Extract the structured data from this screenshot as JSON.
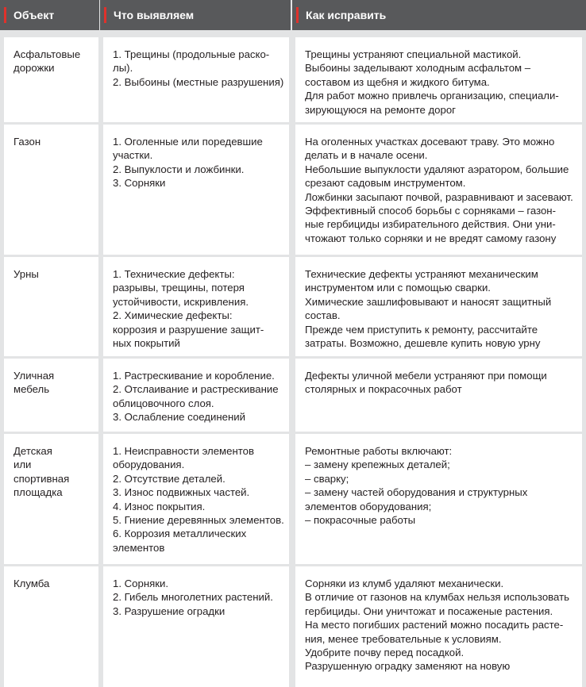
{
  "table": {
    "header": [
      "Объект",
      "Что выявляем",
      "Как исправить"
    ],
    "rows": [
      [
        [
          "Асфальтовые",
          "дорожки"
        ],
        [
          "1. Трещины (продольные раско-",
          "лы).",
          "2. Выбоины (местные разрушения)"
        ],
        [
          "Трещины устраняют специальной мастикой.",
          "Выбоины заделывают холодным асфальтом –",
          "составом из щебня и жидкого битума.",
          "Для работ можно привлечь организацию, специали-",
          "зирующуюся на ремонте дорог"
        ]
      ],
      [
        [
          "Газон"
        ],
        [
          "1. Оголенные или поредевшие",
          "участки.",
          "2. Выпуклости и ложбинки.",
          "3. Сорняки"
        ],
        [
          "На оголенных участках досевают траву. Это можно",
          "делать и в начале осени.",
          "Небольшие выпуклости удаляют аэратором, большие",
          "срезают садовым инструментом.",
          "Ложбинки засыпают почвой, разравнивают и засевают.",
          "Эффективный способ борьбы с сорняками – газон-",
          "ные гербициды избирательного действия. Они уни-",
          "чтожают только сорняки и не вредят самому газону"
        ]
      ],
      [
        [
          "Урны"
        ],
        [
          "1. Технические дефекты:",
          "разрывы, трещины, потеря",
          "устойчивости, искривления.",
          "2. Химические дефекты:",
          "коррозия и разрушение защит-",
          "ных покрытий"
        ],
        [
          "Технические дефекты устраняют механическим",
          "инструментом или с помощью сварки.",
          "Химические зашлифовывают и наносят защитный",
          "состав.",
          "Прежде чем приступить к ремонту, рассчитайте",
          "затраты. Возможно, дешевле купить новую урну"
        ]
      ],
      [
        [
          "Уличная",
          "мебель"
        ],
        [
          "1. Растрескивание и коробление.",
          "2. Отслаивание и растрескивание",
          "облицовочного слоя.",
          "3. Ослабление соединений"
        ],
        [
          "Дефекты уличной мебели устраняют при помощи",
          "столярных и покрасочных работ"
        ]
      ],
      [
        [
          "Детская",
          "или",
          "спортивная",
          "площадка"
        ],
        [
          "1. Неисправности элементов",
          "оборудования.",
          "2. Отсутствие деталей.",
          "3. Износ подвижных частей.",
          "4. Износ покрытия.",
          "5. Гниение деревянных элементов.",
          "6. Коррозия металлических",
          "элементов"
        ],
        [
          "Ремонтные работы включают:",
          "– замену крепежных деталей;",
          "– сварку;",
          "– замену частей оборудования и структурных",
          "элементов оборудования;",
          "– покрасочные работы"
        ]
      ],
      [
        [
          "Клумба"
        ],
        [
          "1. Сорняки.",
          "2. Гибель многолетних растений.",
          "3. Разрушение оградки"
        ],
        [
          "Сорняки из клумб удаляют механически.",
          "В отличие от газонов на клумбах нельзя использовать",
          "гербициды. Они уничтожат и посаженые растения.",
          "На место погибших растений можно посадить расте-",
          "ния, менее требовательные к условиям.",
          "Удобрите почву перед посадкой.",
          "Разрушенную оградку заменяют на новую"
        ]
      ]
    ]
  }
}
